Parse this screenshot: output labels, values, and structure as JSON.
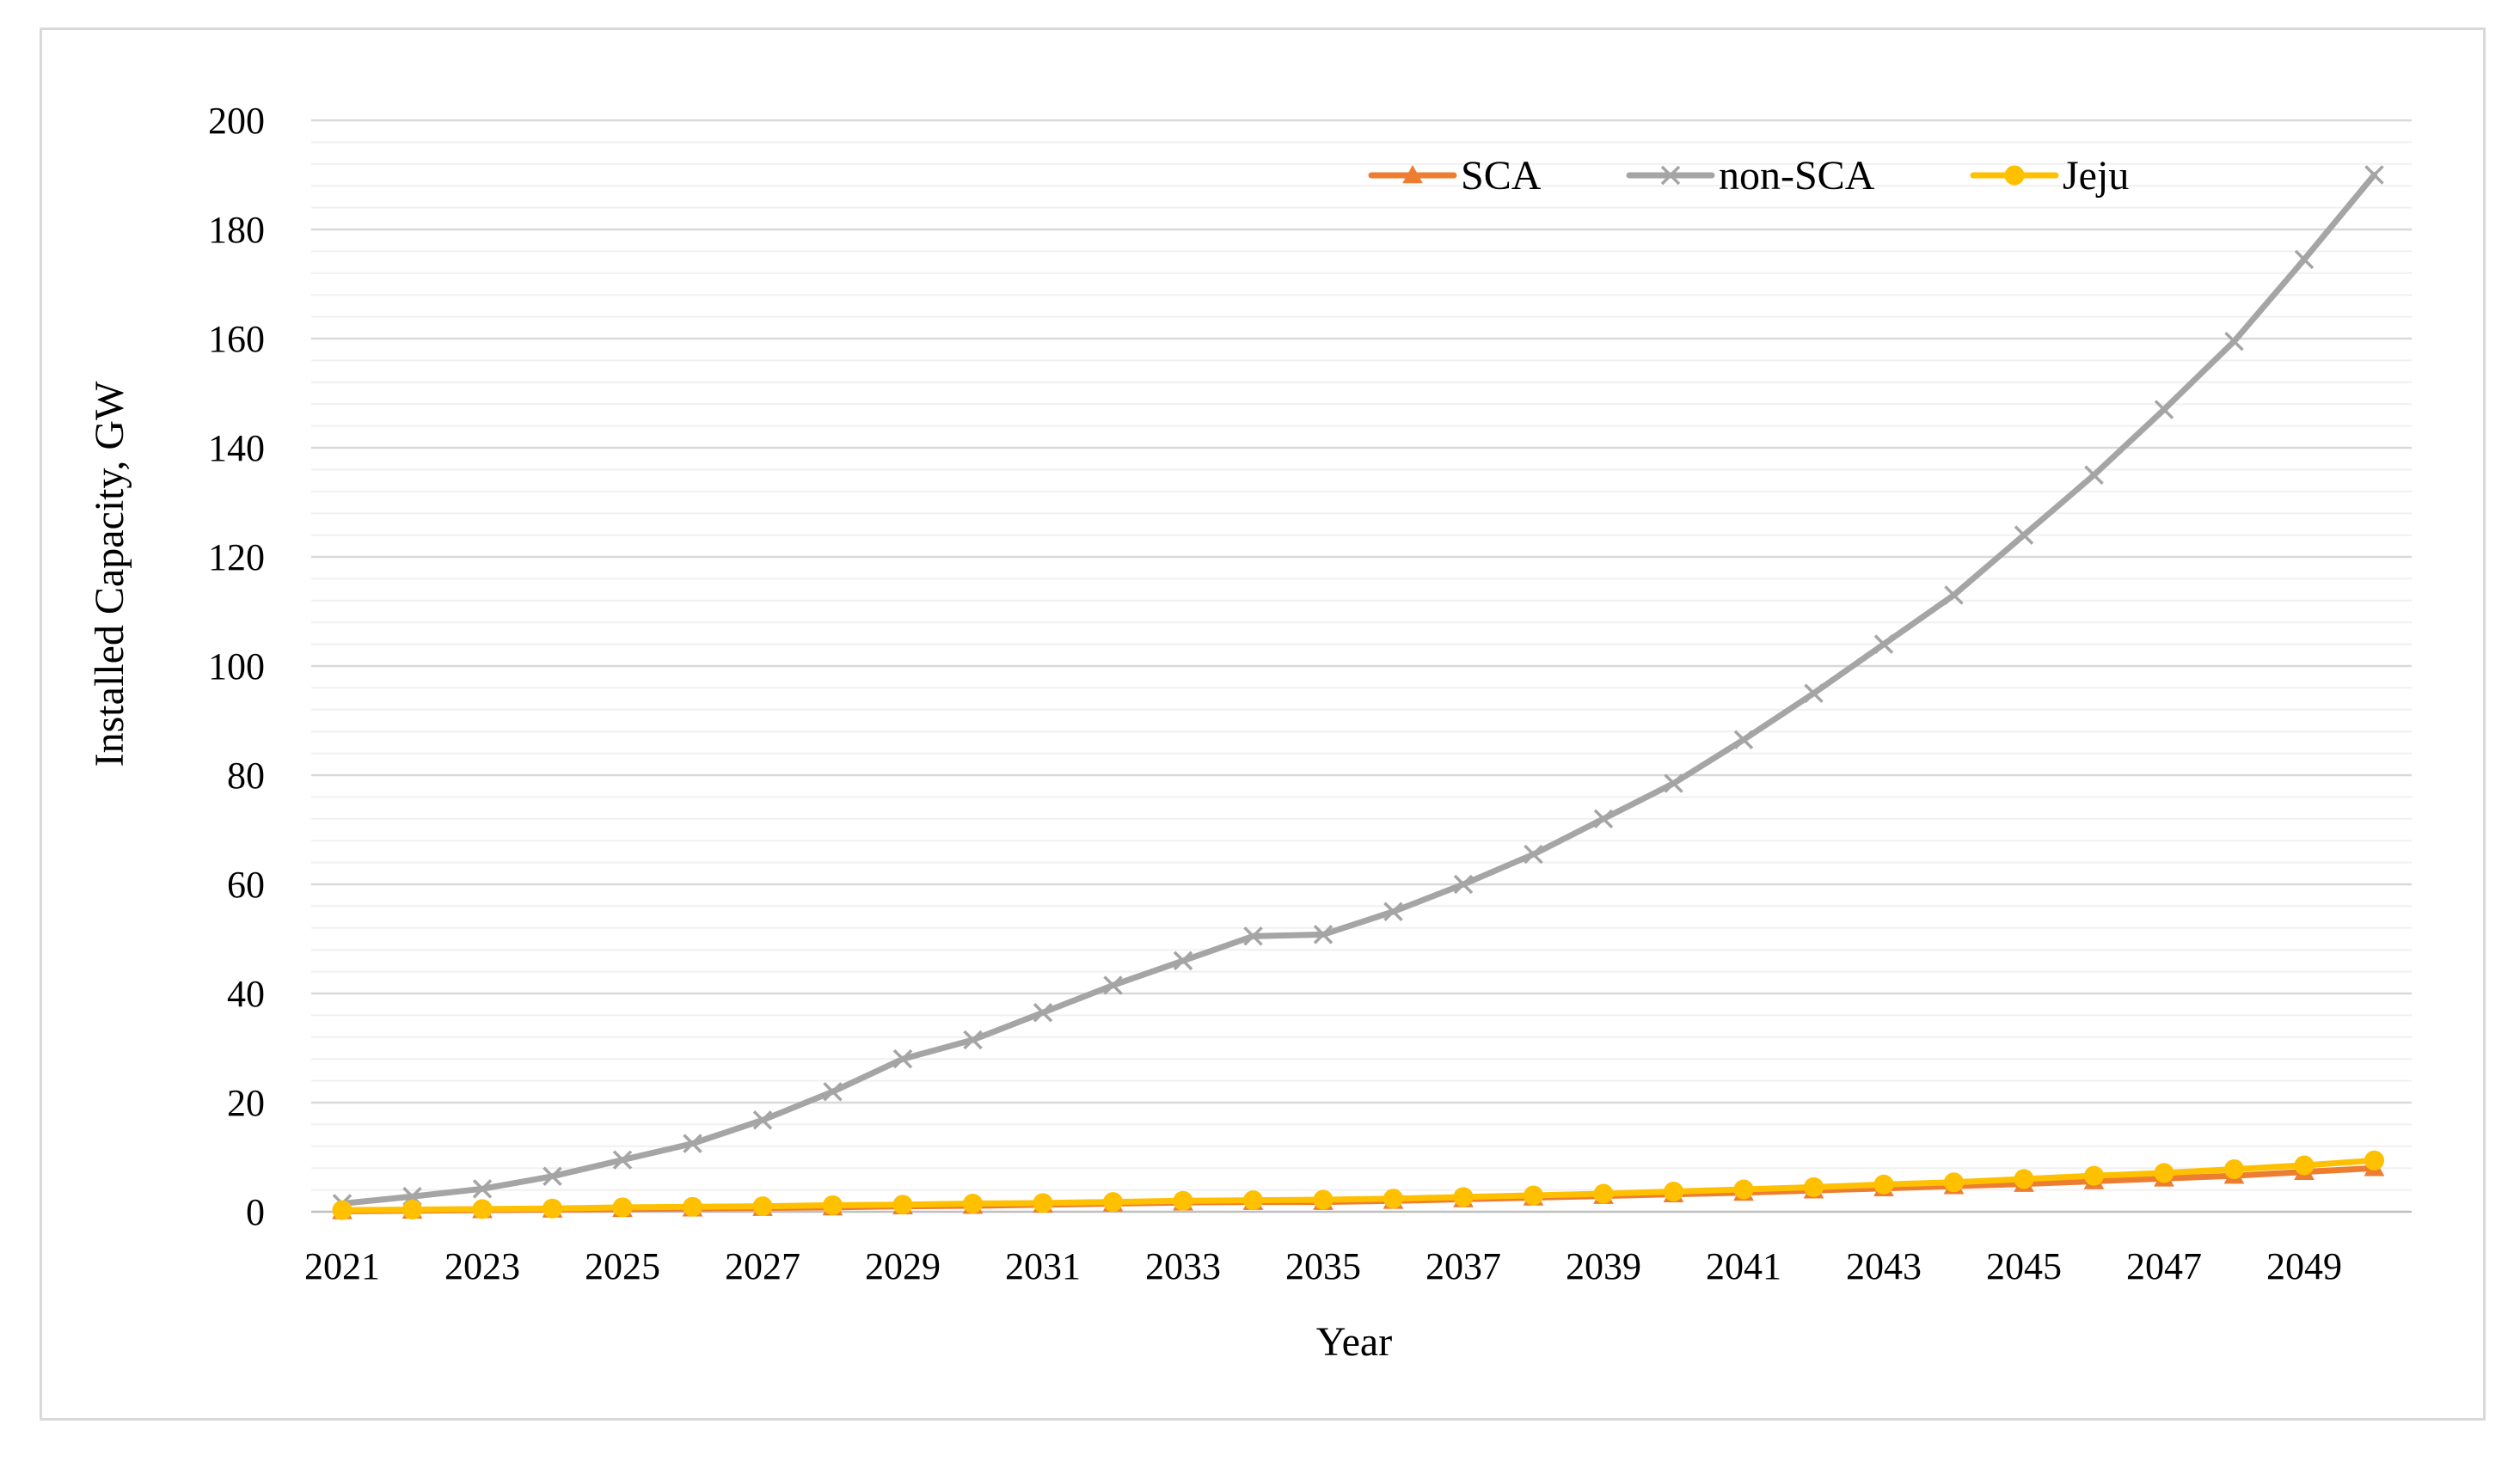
{
  "chart_data": {
    "type": "line",
    "title": "",
    "xlabel": "Year",
    "ylabel": "Installed Capacity, GW",
    "ylim": [
      0,
      200
    ],
    "y_major_ticks": [
      0,
      20,
      40,
      60,
      80,
      100,
      120,
      140,
      160,
      180,
      200
    ],
    "y_minor_step": 4,
    "x": [
      2021,
      2022,
      2023,
      2024,
      2025,
      2026,
      2027,
      2028,
      2029,
      2030,
      2031,
      2032,
      2033,
      2034,
      2035,
      2036,
      2037,
      2038,
      2039,
      2040,
      2041,
      2042,
      2043,
      2044,
      2045,
      2046,
      2047,
      2048,
      2049,
      2050
    ],
    "x_tick_labels": [
      "2021",
      "2023",
      "2025",
      "2027",
      "2029",
      "2031",
      "2033",
      "2035",
      "2037",
      "2039",
      "2041",
      "2043",
      "2045",
      "2047",
      "2049"
    ],
    "grid": true,
    "legend_position": "top-right",
    "series": [
      {
        "name": "SCA",
        "color": "#ed7d31",
        "marker": "triangle",
        "values": [
          0.1,
          0.2,
          0.3,
          0.4,
          0.5,
          0.6,
          0.7,
          0.8,
          1.0,
          1.1,
          1.3,
          1.5,
          1.7,
          1.8,
          1.8,
          2.0,
          2.3,
          2.6,
          2.9,
          3.2,
          3.5,
          3.9,
          4.3,
          4.7,
          5.1,
          5.6,
          6.1,
          6.6,
          7.3,
          8.0
        ]
      },
      {
        "name": "non-SCA",
        "color": "#a5a5a5",
        "marker": "x",
        "values": [
          1.5,
          2.8,
          4.2,
          6.5,
          9.5,
          12.5,
          16.8,
          22.0,
          28.0,
          31.5,
          36.5,
          41.5,
          46.0,
          50.5,
          50.8,
          55.0,
          60.0,
          65.5,
          72.0,
          78.5,
          86.5,
          95.0,
          104.0,
          113.0,
          124.0,
          135.0,
          147.0,
          159.5,
          174.5,
          190.0
        ]
      },
      {
        "name": "Jeju",
        "color": "#ffc000",
        "marker": "circle",
        "values": [
          0.3,
          0.4,
          0.5,
          0.6,
          0.8,
          0.9,
          1.0,
          1.2,
          1.3,
          1.5,
          1.6,
          1.8,
          2.0,
          2.1,
          2.2,
          2.4,
          2.7,
          3.0,
          3.3,
          3.7,
          4.1,
          4.5,
          5.0,
          5.4,
          6.0,
          6.6,
          7.1,
          7.8,
          8.5,
          9.4
        ]
      }
    ]
  }
}
